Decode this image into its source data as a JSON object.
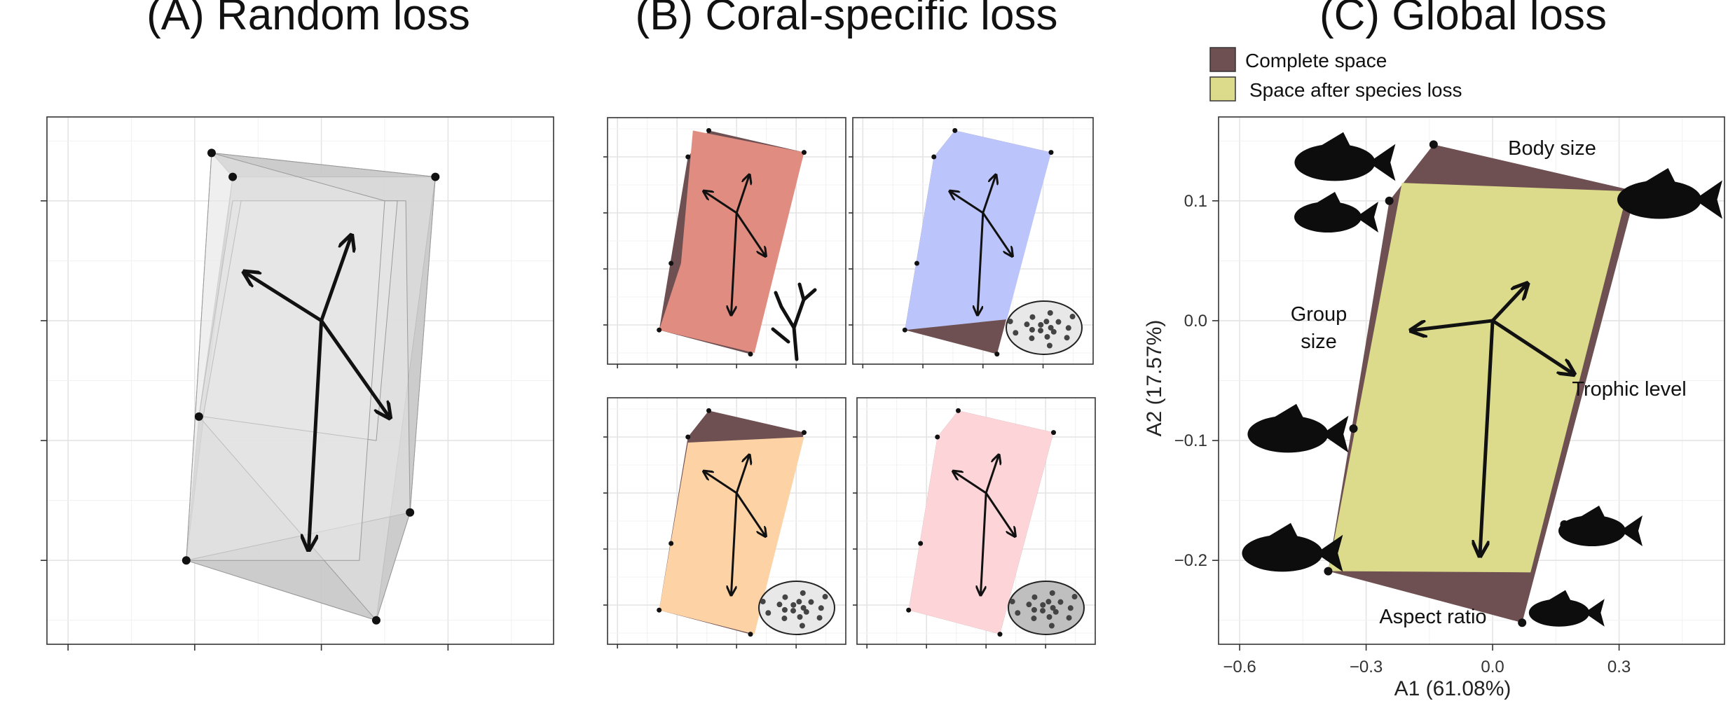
{
  "titles": {
    "a": "(A) Random loss",
    "b": "(B) Coral-specific loss",
    "c": "(C) Global loss"
  },
  "legend": {
    "complete": "Complete space",
    "after": "Space after species loss"
  },
  "colors": {
    "complete": "#6e5052",
    "after": "#dcdb8c",
    "panel_b": [
      "#e08c80",
      "#bcc5fb",
      "#fdd3a6",
      "#fdd5d8"
    ],
    "random": "#c8c8c8",
    "grid": "#e6e6e6",
    "border": "#333333"
  },
  "chart_data": [
    {
      "panel": "A",
      "type": "scatter",
      "title": "(A) Random loss",
      "description_of_marks": "overlapping grey hulls of trait space after random species loss",
      "vertices": [
        [
          -0.26,
          0.14
        ],
        [
          -0.21,
          0.12
        ],
        [
          0.27,
          0.12
        ],
        [
          -0.29,
          -0.08
        ],
        [
          -0.32,
          -0.2
        ],
        [
          0.13,
          -0.25
        ],
        [
          0.21,
          -0.16
        ]
      ],
      "trait_arrows": [
        [
          -0.18,
          0.04
        ],
        [
          0.07,
          0.07
        ],
        [
          0.16,
          -0.08
        ],
        [
          -0.03,
          -0.19
        ]
      ],
      "xlim": [
        -0.65,
        0.55
      ],
      "ylim": [
        -0.27,
        0.17
      ]
    },
    {
      "panel": "B",
      "type": "scatter",
      "title": "(B) Coral-specific loss",
      "subpanels": 4,
      "xlim": [
        -0.65,
        0.55
      ],
      "ylim": [
        -0.27,
        0.17
      ]
    },
    {
      "panel": "C",
      "type": "scatter",
      "title": "(C) Global loss",
      "xlabel": "A1 (61.08%)",
      "ylabel": "A2 (17.57%)",
      "xlim": [
        -0.65,
        0.55
      ],
      "ylim": [
        -0.27,
        0.17
      ],
      "xticks": [
        -0.6,
        -0.3,
        0.0,
        0.3
      ],
      "xtick_labels": [
        "−0.6",
        "−0.3",
        "0.0",
        "0.3"
      ],
      "yticks": [
        0.1,
        0.0,
        -0.1,
        -0.2
      ],
      "ytick_labels": [
        "0.1",
        "0.0",
        "−0.1",
        "−0.2"
      ],
      "grid": true,
      "legend": "top-left",
      "series": [
        {
          "name": "Complete space",
          "hull": [
            [
              -0.14,
              0.147
            ],
            [
              0.34,
              0.108
            ],
            [
              0.07,
              -0.252
            ],
            [
              -0.39,
              -0.209
            ],
            [
              -0.245,
              0.1
            ]
          ]
        },
        {
          "name": "Space after species loss",
          "hull": [
            [
              -0.215,
              0.115
            ],
            [
              0.32,
              0.108
            ],
            [
              0.09,
              -0.21
            ],
            [
              -0.39,
              -0.209
            ]
          ]
        }
      ],
      "vertices": [
        [
          -0.14,
          0.147
        ],
        [
          -0.245,
          0.1
        ],
        [
          0.34,
          0.108
        ],
        [
          -0.33,
          -0.09
        ],
        [
          -0.39,
          -0.209
        ],
        [
          0.17,
          -0.17
        ],
        [
          0.07,
          -0.252
        ]
      ],
      "trait_arrows": [
        {
          "label": "Group size",
          "dx": -0.19,
          "dy": -0.008
        },
        {
          "label": "Body size",
          "dx": 0.08,
          "dy": 0.03
        },
        {
          "label": "Trophic level",
          "dx": 0.19,
          "dy": -0.044
        },
        {
          "label": "Aspect ratio",
          "dx": -0.03,
          "dy": -0.195
        }
      ],
      "trait_labels": {
        "body": "Body size",
        "group_1": "Group",
        "group_2": "size",
        "trophic": "Trophic level",
        "aspect": "Aspect ratio"
      }
    }
  ]
}
